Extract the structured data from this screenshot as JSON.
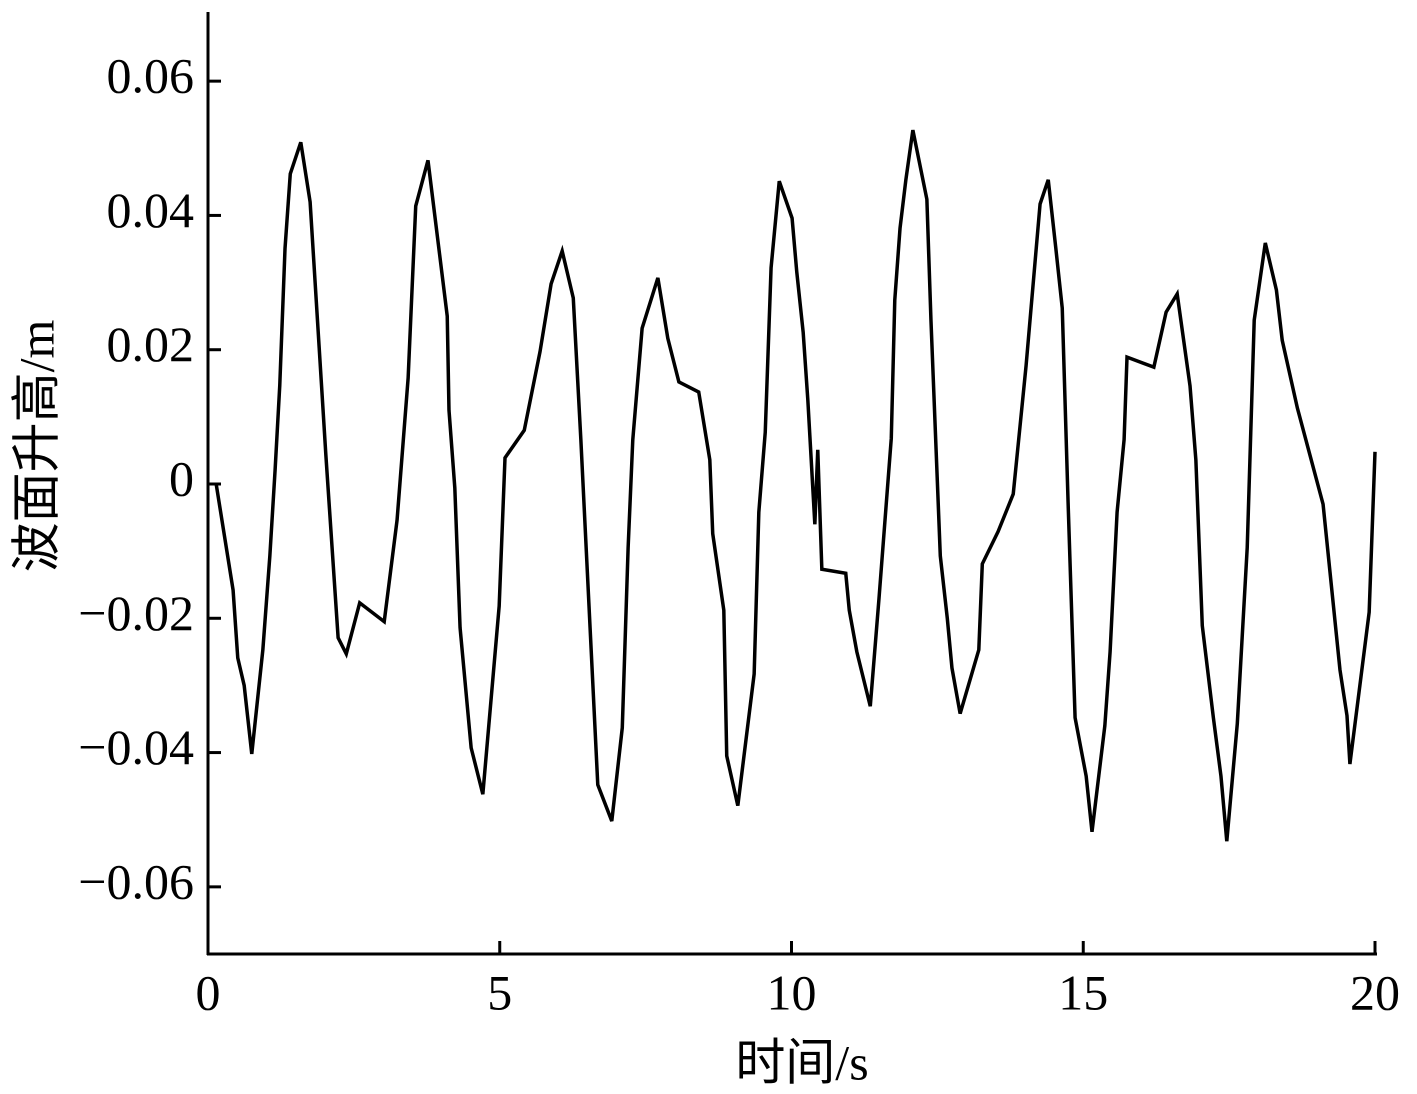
{
  "chart_data": {
    "type": "line",
    "xlabel": "时间/s",
    "ylabel": "波面升高/m",
    "xlim": [
      0,
      20
    ],
    "xticks": [
      0,
      5,
      10,
      15,
      20
    ],
    "ylim": [
      -0.07,
      0.07
    ],
    "yticks": [
      {
        "value": -0.06,
        "label": "−0.06"
      },
      {
        "value": -0.04,
        "label": "−0.04"
      },
      {
        "value": -0.02,
        "label": "−0.02"
      },
      0,
      0.02,
      0.04,
      0.06
    ],
    "grid": false,
    "x": [
      0.14,
      0.43,
      0.51,
      0.62,
      0.75,
      0.94,
      1.06,
      1.15,
      1.23,
      1.32,
      1.41,
      1.59,
      1.75,
      2.02,
      2.23,
      2.37,
      2.6,
      3.02,
      3.24,
      3.43,
      3.56,
      3.77,
      4.1,
      4.13,
      4.23,
      4.32,
      4.51,
      4.71,
      4.88,
      4.99,
      5.09,
      5.42,
      5.69,
      5.88,
      6.07,
      6.26,
      6.39,
      6.68,
      6.92,
      7.1,
      7.2,
      7.28,
      7.44,
      7.71,
      7.88,
      8.07,
      8.41,
      8.6,
      8.65,
      8.84,
      8.89,
      9.08,
      9.36,
      9.44,
      9.55,
      9.65,
      9.79,
      10.01,
      10.09,
      10.2,
      10.28,
      10.4,
      10.45,
      10.52,
      10.93,
      10.99,
      11.12,
      11.35,
      11.5,
      11.71,
      11.77,
      11.86,
      11.96,
      12.08,
      12.32,
      12.39,
      12.55,
      12.67,
      12.75,
      12.89,
      13.21,
      13.27,
      13.54,
      13.8,
      14.02,
      14.26,
      14.4,
      14.53,
      14.64,
      14.74,
      14.86,
      15.05,
      15.15,
      15.37,
      15.46,
      15.58,
      15.7,
      15.75,
      16.21,
      16.42,
      16.61,
      16.83,
      16.93,
      17.04,
      17.23,
      17.36,
      17.46,
      17.64,
      17.81,
      17.93,
      18.12,
      18.31,
      18.41,
      18.67,
      19.11,
      19.4,
      19.52,
      19.57,
      19.9,
      20.0
    ],
    "series": [
      {
        "color": "#000000",
        "values": [
          0,
          -0.0158,
          -0.0259,
          -0.03,
          -0.0402,
          -0.0247,
          -0.0107,
          0.0021,
          0.0147,
          0.0351,
          0.0462,
          0.0509,
          0.042,
          0.0043,
          -0.0229,
          -0.0253,
          -0.0177,
          -0.0205,
          -0.0054,
          0.0158,
          0.0414,
          0.0482,
          0.025,
          0.011,
          -0.0006,
          -0.0214,
          -0.0393,
          -0.0462,
          -0.0292,
          -0.0182,
          0.0039,
          0.008,
          0.0197,
          0.0298,
          0.0347,
          0.0277,
          0.0066,
          -0.0448,
          -0.0502,
          -0.0363,
          -0.0095,
          0.0066,
          0.0232,
          0.0307,
          0.0217,
          0.0152,
          0.0137,
          0.0036,
          -0.0074,
          -0.0188,
          -0.0405,
          -0.0479,
          -0.0283,
          -0.0042,
          0.0077,
          0.0322,
          0.0451,
          0.0396,
          0.0316,
          0.0226,
          0.0125,
          -0.006,
          0.0051,
          -0.0127,
          -0.0133,
          -0.0188,
          -0.025,
          -0.0331,
          -0.017,
          0.0068,
          0.0274,
          0.0381,
          0.0453,
          0.0527,
          0.0424,
          0.0244,
          -0.0107,
          -0.02,
          -0.0274,
          -0.0342,
          -0.0247,
          -0.0119,
          -0.0071,
          -0.0015,
          0.0176,
          0.0417,
          0.0453,
          0.0351,
          0.0262,
          -0.0027,
          -0.0348,
          -0.0435,
          -0.0518,
          -0.036,
          -0.025,
          -0.0042,
          0.0066,
          0.0189,
          0.0174,
          0.0256,
          0.0283,
          0.0146,
          0.0036,
          -0.0211,
          -0.0348,
          -0.0435,
          -0.0532,
          -0.0357,
          -0.0095,
          0.0244,
          0.0359,
          0.0289,
          0.0214,
          0.0113,
          -0.003,
          -0.0277,
          -0.0345,
          -0.0417,
          -0.0191,
          0.0048
        ]
      }
    ]
  }
}
